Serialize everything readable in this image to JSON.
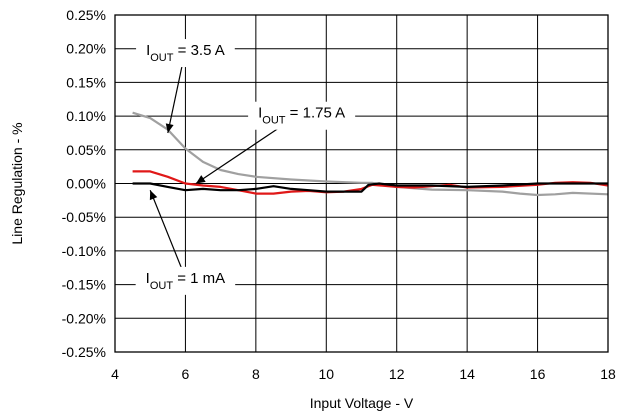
{
  "chart_data": {
    "type": "line",
    "xlabel": "Input Voltage - V",
    "ylabel": "Line Regulation - %",
    "xlim": [
      4,
      18
    ],
    "ylim": [
      -0.25,
      0.25
    ],
    "xticks": [
      4,
      6,
      8,
      10,
      12,
      14,
      16,
      18
    ],
    "xtick_labels": [
      "4",
      "6",
      "8",
      "10",
      "12",
      "14",
      "16",
      "18"
    ],
    "yticks": [
      0.25,
      0.2,
      0.15,
      0.1,
      0.05,
      0.0,
      -0.05,
      -0.1,
      -0.15,
      -0.2,
      -0.25
    ],
    "ytick_labels": [
      "0.25%",
      "0.20%",
      "0.15%",
      "0.10%",
      "0.05%",
      "0.00%",
      "-0.05%",
      "-0.10%",
      "-0.15%",
      "-0.20%",
      "-0.25%"
    ],
    "grid": true,
    "series": [
      {
        "name": "IOUT = 3.5 A",
        "color": "#a0a0a0",
        "points": [
          [
            4.5,
            0.105
          ],
          [
            5.0,
            0.097
          ],
          [
            5.5,
            0.08
          ],
          [
            6.0,
            0.052
          ],
          [
            6.5,
            0.032
          ],
          [
            7.0,
            0.02
          ],
          [
            7.5,
            0.014
          ],
          [
            8.0,
            0.01
          ],
          [
            9.0,
            0.006
          ],
          [
            10.0,
            0.003
          ],
          [
            11.0,
            0.001
          ],
          [
            11.3,
            0.001
          ],
          [
            12.0,
            -0.005
          ],
          [
            13.0,
            -0.009
          ],
          [
            14.0,
            -0.01
          ],
          [
            15.0,
            -0.012
          ],
          [
            15.5,
            -0.015
          ],
          [
            16.0,
            -0.017
          ],
          [
            16.5,
            -0.016
          ],
          [
            17.0,
            -0.014
          ],
          [
            18.0,
            -0.016
          ]
        ]
      },
      {
        "name": "IOUT = 1.75 A",
        "color": "#e01818",
        "points": [
          [
            4.5,
            0.018
          ],
          [
            5.0,
            0.018
          ],
          [
            5.5,
            0.01
          ],
          [
            6.0,
            0.0
          ],
          [
            6.5,
            -0.003
          ],
          [
            7.0,
            -0.005
          ],
          [
            7.5,
            -0.01
          ],
          [
            8.0,
            -0.015
          ],
          [
            8.5,
            -0.015
          ],
          [
            9.0,
            -0.012
          ],
          [
            9.5,
            -0.011
          ],
          [
            10.0,
            -0.013
          ],
          [
            10.5,
            -0.012
          ],
          [
            11.0,
            -0.008
          ],
          [
            11.3,
            -0.002
          ],
          [
            12.0,
            -0.005
          ],
          [
            12.5,
            -0.006
          ],
          [
            13.0,
            -0.004
          ],
          [
            13.5,
            -0.002
          ],
          [
            14.0,
            -0.006
          ],
          [
            15.0,
            -0.005
          ],
          [
            16.0,
            -0.002
          ],
          [
            16.5,
            0.001
          ],
          [
            17.0,
            0.002
          ],
          [
            17.5,
            0.001
          ],
          [
            18.0,
            -0.003
          ]
        ]
      },
      {
        "name": "IOUT = 1 mA",
        "color": "#000000",
        "points": [
          [
            4.5,
            0.0
          ],
          [
            5.0,
            0.0
          ],
          [
            5.5,
            -0.005
          ],
          [
            6.0,
            -0.01
          ],
          [
            6.5,
            -0.008
          ],
          [
            7.0,
            -0.01
          ],
          [
            7.5,
            -0.01
          ],
          [
            8.0,
            -0.008
          ],
          [
            8.5,
            -0.004
          ],
          [
            9.0,
            -0.008
          ],
          [
            9.5,
            -0.01
          ],
          [
            10.0,
            -0.012
          ],
          [
            10.5,
            -0.012
          ],
          [
            11.0,
            -0.012
          ],
          [
            11.2,
            -0.002
          ],
          [
            11.5,
            0.0
          ],
          [
            12.0,
            -0.003
          ],
          [
            13.0,
            -0.003
          ],
          [
            14.0,
            -0.005
          ],
          [
            15.0,
            -0.003
          ],
          [
            16.0,
            0.0
          ],
          [
            17.0,
            0.0
          ],
          [
            18.0,
            0.0
          ]
        ]
      }
    ],
    "annotations": [
      {
        "series": 0,
        "label_base": "I",
        "label_sub": "OUT",
        "label_rest": " = 3.5 A",
        "anchor": [
          6.0,
          0.198
        ],
        "target": [
          5.5,
          0.075
        ]
      },
      {
        "series": 1,
        "label_base": "I",
        "label_sub": "OUT",
        "label_rest": " = 1.75 A",
        "anchor": [
          9.3,
          0.105
        ],
        "target": [
          6.3,
          0.0
        ]
      },
      {
        "series": 2,
        "label_base": "I",
        "label_sub": "OUT",
        "label_rest": " = 1 mA",
        "anchor": [
          6.0,
          -0.14
        ],
        "target": [
          5.0,
          -0.01
        ]
      }
    ]
  }
}
